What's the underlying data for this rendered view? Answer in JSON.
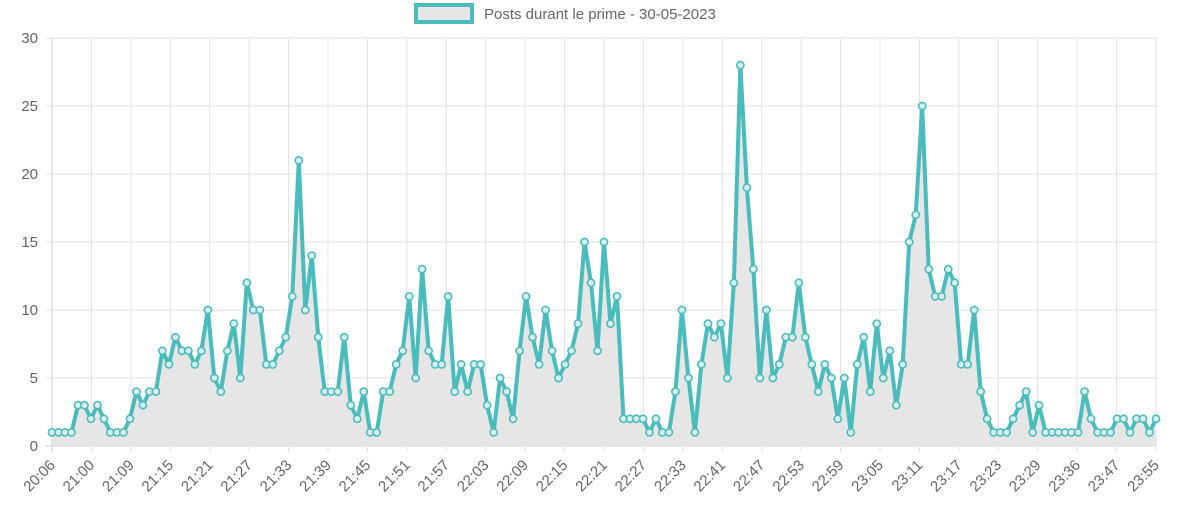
{
  "colors": {
    "line": "#4bbcbc",
    "fill": "#e6e6e6",
    "point_fill": "#d9eeee"
  },
  "chart_data": {
    "type": "line",
    "title": "",
    "xlabel": "",
    "ylabel": "",
    "ylim": [
      0,
      30
    ],
    "yticks": [
      0,
      5,
      10,
      15,
      20,
      25,
      30
    ],
    "grid": true,
    "legend_position": "top-center",
    "xtick_labels": [
      "20:06",
      "21:00",
      "21:09",
      "21:15",
      "21:21",
      "21:27",
      "21:33",
      "21:39",
      "21:45",
      "21:51",
      "21:57",
      "22:03",
      "22:09",
      "22:15",
      "22:21",
      "22:27",
      "22:33",
      "22:41",
      "22:47",
      "22:53",
      "22:59",
      "23:05",
      "23:11",
      "23:17",
      "23:23",
      "23:29",
      "23:36",
      "23:47",
      "23:55"
    ],
    "series": [
      {
        "name": "Posts durant le prime - 30-05-2023",
        "values": [
          1,
          1,
          1,
          1,
          3,
          3,
          2,
          3,
          2,
          1,
          1,
          1,
          2,
          4,
          3,
          4,
          4,
          7,
          6,
          8,
          7,
          7,
          6,
          7,
          10,
          5,
          4,
          7,
          9,
          5,
          12,
          10,
          10,
          6,
          6,
          7,
          8,
          11,
          21,
          10,
          14,
          8,
          4,
          4,
          4,
          8,
          3,
          2,
          4,
          1,
          1,
          4,
          4,
          6,
          7,
          11,
          5,
          13,
          7,
          6,
          6,
          11,
          4,
          6,
          4,
          6,
          6,
          3,
          1,
          5,
          4,
          2,
          7,
          11,
          8,
          6,
          10,
          7,
          5,
          6,
          7,
          9,
          15,
          12,
          7,
          15,
          9,
          11,
          2,
          2,
          2,
          2,
          1,
          2,
          1,
          1,
          4,
          10,
          5,
          1,
          6,
          9,
          8,
          9,
          5,
          12,
          28,
          19,
          13,
          5,
          10,
          5,
          6,
          8,
          8,
          12,
          8,
          6,
          4,
          6,
          5,
          2,
          5,
          1,
          6,
          8,
          4,
          9,
          5,
          7,
          3,
          6,
          15,
          17,
          25,
          13,
          11,
          11,
          13,
          12,
          6,
          6,
          10,
          4,
          2,
          1,
          1,
          1,
          2,
          3,
          4,
          1,
          3,
          1,
          1,
          1,
          1,
          1,
          1,
          4,
          2,
          1,
          1,
          1,
          2,
          2,
          1,
          2,
          2,
          1,
          2
        ]
      }
    ]
  }
}
